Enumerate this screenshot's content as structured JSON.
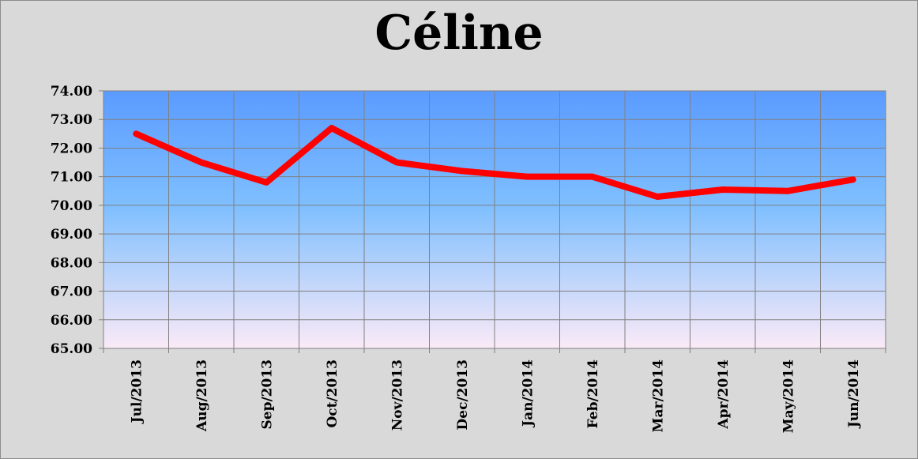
{
  "chart_data": {
    "type": "line",
    "title": "Céline",
    "xlabel": "",
    "ylabel": "",
    "categories": [
      "Jul/2013",
      "Aug/2013",
      "Sep/2013",
      "Oct/2013",
      "Nov/2013",
      "Dec/2013",
      "Jan/2014",
      "Feb/2014",
      "Mar/2014",
      "Apr/2014",
      "May/2014",
      "Jun/2014"
    ],
    "series": [
      {
        "values": [
          72.5,
          71.5,
          70.8,
          72.7,
          71.5,
          71.2,
          71.0,
          71.0,
          70.3,
          70.55,
          70.5,
          70.9
        ],
        "color": "#ff0000"
      }
    ],
    "ylim": [
      65.0,
      74.0
    ],
    "yticks": [
      "65.00",
      "66.00",
      "67.00",
      "68.00",
      "69.00",
      "70.00",
      "71.00",
      "72.00",
      "73.00",
      "74.00"
    ],
    "grid": true,
    "legend": "none",
    "colors": {
      "background": "#d9d9d9",
      "plot_top": "#5b9bff",
      "plot_mid": "#7fbfff",
      "plot_bottom": "#fbeaf7",
      "gridline": "#808080",
      "line": "#ff0000"
    }
  }
}
